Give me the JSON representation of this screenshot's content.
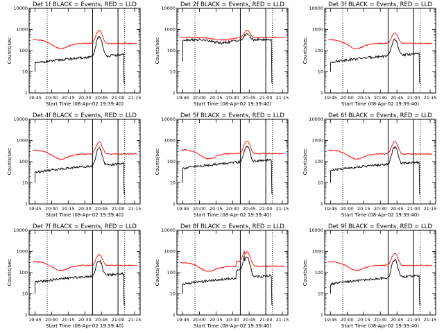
{
  "chart_data": [
    {
      "type": "line",
      "title": "Det 1f BLACK = Events, RED = LLD",
      "xlabel": "Start Time (08-Apr-02 19:39:40)",
      "ylabel": "Counts/sec",
      "yscale": "log",
      "ylim": [
        1,
        10000
      ],
      "xticks": [
        "19:45",
        "20:00",
        "20:15",
        "20:30",
        "20:45",
        "21:00",
        "21:15"
      ],
      "yticks": [
        "1",
        "10",
        "100",
        "1000",
        "10000"
      ],
      "profile": "normal",
      "black_base": 40,
      "red_base": 220,
      "peak": [
        "20:43",
        750
      ],
      "solid_lines": [
        "20:37",
        "21:00"
      ],
      "dotted_lines": [
        "19:56",
        "21:06"
      ],
      "series": [
        {
          "color": "#000000"
        },
        {
          "color": "#ff0000"
        }
      ]
    },
    {
      "type": "line",
      "title": "Det 2f BLACK = Events, RED = LLD",
      "xlabel": "Start Time (08-Apr-02 19:39:40)",
      "ylabel": "Counts/sec",
      "yscale": "log",
      "ylim": [
        1,
        10000
      ],
      "xticks": [
        "19:45",
        "20:00",
        "20:15",
        "20:30",
        "20:45",
        "21:00",
        "21:15"
      ],
      "yticks": [
        "1",
        "10",
        "100",
        "1000",
        "10000"
      ],
      "profile": "flat",
      "black_base": 330,
      "red_base": 420,
      "peak": [
        "20:43",
        560
      ],
      "solid_lines": [
        "20:37",
        "21:00"
      ],
      "dotted_lines": [
        "19:56",
        "21:06"
      ],
      "series": [
        {
          "color": "#000000"
        },
        {
          "color": "#ff0000"
        }
      ]
    },
    {
      "type": "line",
      "title": "Det 3f BLACK = Events, RED = LLD",
      "xlabel": "Start Time (08-Apr-02 19:39:40)",
      "ylabel": "Counts/sec",
      "yscale": "log",
      "ylim": [
        1,
        10000
      ],
      "xticks": [
        "19:45",
        "20:00",
        "20:15",
        "20:30",
        "20:45",
        "21:00",
        "21:15"
      ],
      "yticks": [
        "1",
        "10",
        "100",
        "1000",
        "10000"
      ],
      "profile": "normal",
      "black_base": 45,
      "red_base": 220,
      "peak": [
        "20:43",
        520
      ],
      "solid_lines": [
        "20:37",
        "21:00"
      ],
      "dotted_lines": [
        "19:56",
        "21:06"
      ],
      "series": [
        {
          "color": "#000000"
        },
        {
          "color": "#ff0000"
        }
      ]
    },
    {
      "type": "line",
      "title": "Det 4f BLACK = Events, RED = LLD",
      "xlabel": "Start Time (08-Apr-02 19:39:40)",
      "ylabel": "Counts/sec",
      "yscale": "log",
      "ylim": [
        1,
        10000
      ],
      "xticks": [
        "19:45",
        "20:00",
        "20:15",
        "20:30",
        "20:45",
        "21:00",
        "21:15"
      ],
      "yticks": [
        "1",
        "10",
        "100",
        "1000",
        "10000"
      ],
      "profile": "normal",
      "black_base": 50,
      "red_base": 230,
      "peak": [
        "20:43",
        680
      ],
      "solid_lines": [
        "20:37",
        "21:00"
      ],
      "dotted_lines": [
        "19:56",
        "21:06"
      ],
      "series": [
        {
          "color": "#000000"
        },
        {
          "color": "#ff0000"
        }
      ]
    },
    {
      "type": "line",
      "title": "Det 5f BLACK = Events, RED = LLD",
      "xlabel": "Start Time (08-Apr-02 19:39:40)",
      "ylabel": "Counts/sec",
      "yscale": "log",
      "ylim": [
        1,
        10000
      ],
      "xticks": [
        "19:45",
        "20:00",
        "20:15",
        "20:30",
        "20:45",
        "21:00",
        "21:15"
      ],
      "yticks": [
        "1",
        "10",
        "100",
        "1000",
        "10000"
      ],
      "profile": "normal",
      "black_base": 75,
      "red_base": 240,
      "peak": [
        "20:43",
        800
      ],
      "solid_lines": [
        "20:37",
        "21:00"
      ],
      "dotted_lines": [
        "19:56",
        "21:06"
      ],
      "series": [
        {
          "color": "#000000"
        },
        {
          "color": "#ff0000"
        }
      ]
    },
    {
      "type": "line",
      "title": "Det 6f BLACK = Events, RED = LLD",
      "xlabel": "Start Time (08-Apr-02 19:39:40)",
      "ylabel": "Counts/sec",
      "yscale": "log",
      "ylim": [
        1,
        10000
      ],
      "xticks": [
        "19:45",
        "20:00",
        "20:15",
        "20:30",
        "20:45",
        "21:00",
        "21:15"
      ],
      "yticks": [
        "1",
        "10",
        "100",
        "1000",
        "10000"
      ],
      "profile": "normal",
      "black_base": 60,
      "red_base": 230,
      "peak": [
        "20:43",
        750
      ],
      "solid_lines": [
        "20:37",
        "21:00"
      ],
      "dotted_lines": [
        "19:56",
        "21:06"
      ],
      "series": [
        {
          "color": "#000000"
        },
        {
          "color": "#ff0000"
        }
      ]
    },
    {
      "type": "line",
      "title": "Det 7f BLACK = Events, RED = LLD",
      "xlabel": "Start Time (08-Apr-02 19:39:40)",
      "ylabel": "Counts/sec",
      "yscale": "log",
      "ylim": [
        1,
        10000
      ],
      "xticks": [
        "19:45",
        "20:00",
        "20:15",
        "20:30",
        "20:45",
        "21:00",
        "21:15"
      ],
      "yticks": [
        "1",
        "10",
        "100",
        "1000",
        "10000"
      ],
      "profile": "normal",
      "black_base": 55,
      "red_base": 220,
      "peak": [
        "20:43",
        550
      ],
      "solid_lines": [
        "20:37",
        "21:00"
      ],
      "dotted_lines": [
        "19:56",
        "21:06"
      ],
      "series": [
        {
          "color": "#000000"
        },
        {
          "color": "#ff0000"
        }
      ]
    },
    {
      "type": "line",
      "title": "Det 8f BLACK = Events, RED = LLD",
      "xlabel": "Start Time (08-Apr-02 19:39:40)",
      "ylabel": "Counts/sec",
      "yscale": "log",
      "ylim": [
        1,
        10000
      ],
      "xticks": [
        "19:45",
        "20:00",
        "20:15",
        "20:30",
        "20:45",
        "21:00",
        "21:15"
      ],
      "yticks": [
        "1",
        "10",
        "100",
        "1000",
        "10000"
      ],
      "profile": "bumpy",
      "black_base": 45,
      "red_base": 200,
      "peak": [
        "20:43",
        850
      ],
      "solid_lines": [
        "20:37",
        "21:00"
      ],
      "dotted_lines": [
        "19:56",
        "21:06"
      ],
      "series": [
        {
          "color": "#000000"
        },
        {
          "color": "#ff0000"
        }
      ]
    },
    {
      "type": "line",
      "title": "Det 9f BLACK = Events, RED = LLD",
      "xlabel": "Start Time (08-Apr-02 19:39:40)",
      "ylabel": "Counts/sec",
      "yscale": "log",
      "ylim": [
        1,
        10000
      ],
      "xticks": [
        "19:45",
        "20:00",
        "20:15",
        "20:30",
        "20:45",
        "21:00",
        "21:15"
      ],
      "yticks": [
        "1",
        "10",
        "100",
        "1000",
        "10000"
      ],
      "profile": "normal",
      "black_base": 45,
      "red_base": 220,
      "peak": [
        "20:43",
        650
      ],
      "solid_lines": [
        "20:37",
        "21:00"
      ],
      "dotted_lines": [
        "19:56",
        "21:06"
      ],
      "series": [
        {
          "color": "#000000"
        },
        {
          "color": "#ff0000"
        }
      ]
    }
  ]
}
